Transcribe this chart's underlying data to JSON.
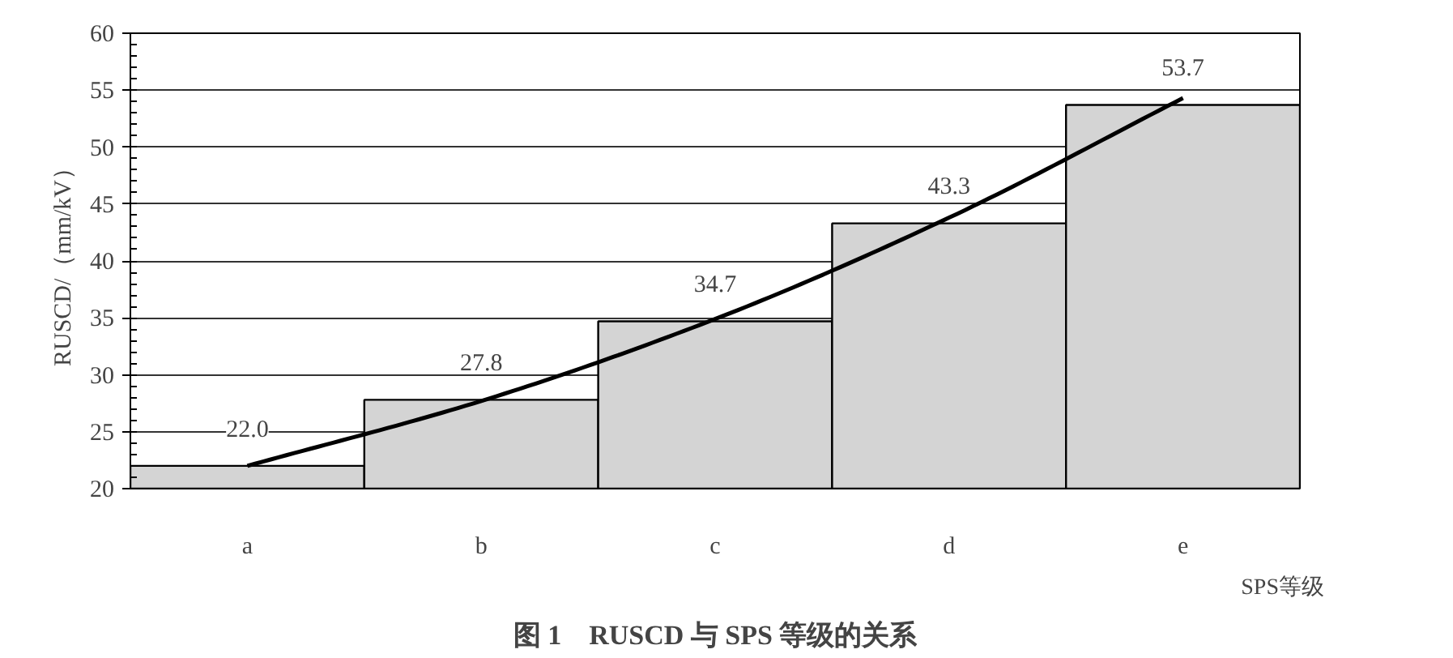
{
  "chart_data": {
    "type": "bar",
    "title": "图 1　RUSCD 与 SPS 等级的关系",
    "xlabel": "SPS等级",
    "ylabel": "RUSCD/（mm/kV）",
    "categories": [
      "a",
      "b",
      "c",
      "d",
      "e"
    ],
    "series": [
      {
        "color": "#d4d4d4",
        "values": [
          22.0,
          27.8,
          34.7,
          43.3,
          53.7
        ],
        "value_labels": [
          "22.0",
          "27.8",
          "34.7",
          "43.3",
          "53.7"
        ]
      },
      {
        "type": "line",
        "color": "#000000",
        "values": [
          22.0,
          27.7,
          34.9,
          43.8,
          54.3
        ]
      }
    ],
    "ylim": [
      20,
      60
    ],
    "yticks": [
      20,
      25,
      30,
      35,
      40,
      45,
      50,
      55,
      60
    ],
    "grid": "y"
  }
}
